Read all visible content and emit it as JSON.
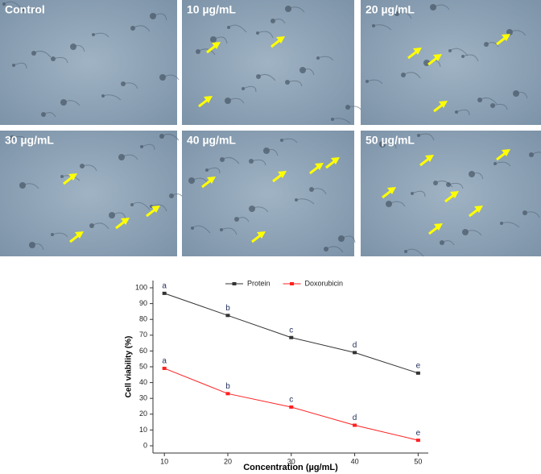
{
  "panels": [
    {
      "label": "Control"
    },
    {
      "label": "10 µg/mL"
    },
    {
      "label": "20 µg/mL"
    },
    {
      "label": "30 µg/mL"
    },
    {
      "label": "40 µg/mL"
    },
    {
      "label": "50 µg/mL"
    }
  ],
  "chart_data": {
    "type": "line",
    "x_label": "Concentration (µg/mL)",
    "y_label": "Cell viability (%)",
    "x": [
      10,
      20,
      30,
      40,
      50
    ],
    "series": [
      {
        "name": "Protein",
        "color": "#333333",
        "values": [
          96.5,
          82.5,
          68.5,
          59,
          46
        ],
        "point_labels": [
          "a",
          "b",
          "c",
          "d",
          "e"
        ]
      },
      {
        "name": "Doxorubicin",
        "color": "#ff2020",
        "values": [
          49,
          33,
          24.5,
          13,
          3.5
        ],
        "point_labels": [
          "a",
          "b",
          "c",
          "d",
          "e"
        ]
      }
    ],
    "xlim": [
      8.2,
      51.6
    ],
    "xticks": [
      10,
      20,
      30,
      40,
      50
    ],
    "ylim": [
      -4.6,
      104.6
    ],
    "yticks": [
      0,
      10,
      20,
      30,
      40,
      50,
      60,
      70,
      80,
      90,
      100
    ],
    "legend": "top"
  }
}
